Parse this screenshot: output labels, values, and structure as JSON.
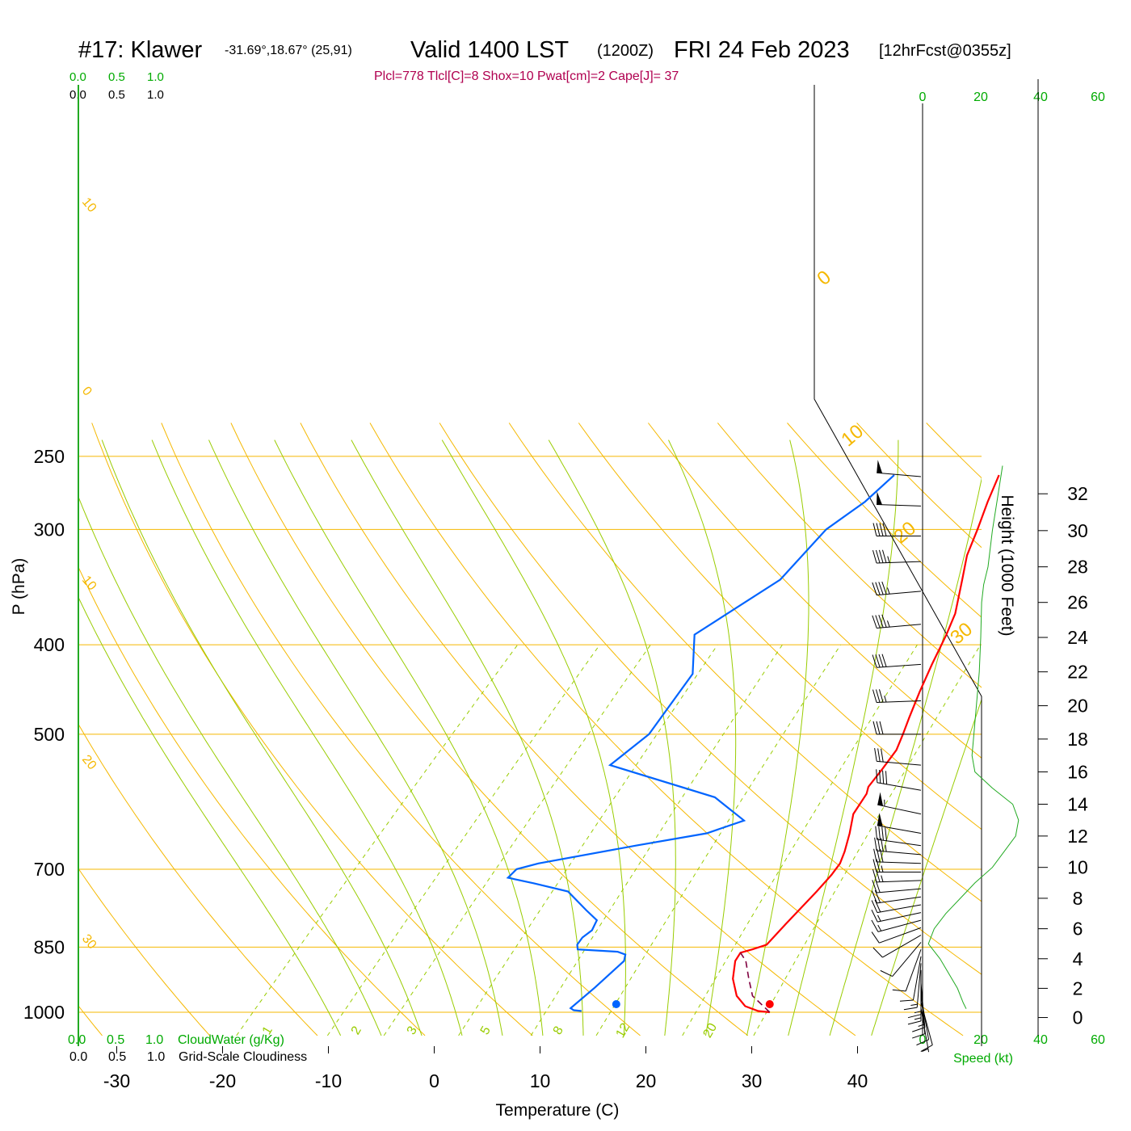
{
  "header": {
    "station": "#17: Klawer",
    "coords": "-31.69°,18.67° (25,91)",
    "valid": "Valid 1400 LST",
    "zulu": "(1200Z)",
    "date": "FRI 24 Feb 2023",
    "forecast": "[12hrFcst@0355z]",
    "indices": "Plcl=778 Tlcl[C]=8 Shox=10 Pwat[cm]=2 Cape[J]= 37"
  },
  "colors": {
    "temperature": "#ff0000",
    "dewpoint": "#0064ff",
    "parcel": "#800040",
    "isobar": "#f5b800",
    "dry_adiabat": "#f5b800",
    "moist_adiabat": "#99cc00",
    "mixing_ratio": "#99cc00",
    "green_text": "#00aa00",
    "indices_text": "#b00050"
  },
  "labels": {
    "cloud_scale_values": [
      "0.0",
      "0.5",
      "1.0"
    ],
    "cloud_water": "CloudWater (g/Kg)",
    "cloudiness": "Grid-Scale Cloudiness",
    "speed_ticks": [
      "0",
      "20",
      "40",
      "60"
    ],
    "speed_label": "Speed (kt)",
    "height_label": "Height (1000 Feet)",
    "height_ticks": [
      "0",
      "2",
      "4",
      "6",
      "8",
      "10",
      "12",
      "14",
      "16",
      "18",
      "20",
      "22",
      "24",
      "26",
      "28",
      "30",
      "32"
    ]
  },
  "chart_data": {
    "type": "line",
    "subtype": "skew-T log-P sounding",
    "xlabel": "Temperature (C)",
    "ylabel": "P (hPa)",
    "x_ticks": [
      -30,
      -20,
      -10,
      0,
      10,
      20,
      30,
      40
    ],
    "pressure_ticks": [
      250,
      300,
      400,
      500,
      700,
      850,
      1000
    ],
    "y_scale": "log (inverted)",
    "dry_adiabat_labels": [
      "30",
      "20",
      "10",
      "0",
      "-10",
      "-20",
      "-30"
    ],
    "right_dry_adiabat_labels": [
      "0",
      "10",
      "20",
      "30"
    ],
    "mixing_ratio_labels": [
      "1",
      "2",
      "3",
      "5",
      "8",
      "12",
      "20"
    ],
    "series": [
      {
        "name": "Temperature",
        "points": [
          [
            1000,
            31.7
          ],
          [
            997,
            30.5
          ],
          [
            985,
            28.8
          ],
          [
            960,
            27.0
          ],
          [
            920,
            25.0
          ],
          [
            880,
            23.5
          ],
          [
            862,
            23.2
          ],
          [
            855,
            24.0
          ],
          [
            845,
            24.9
          ],
          [
            800,
            24.7
          ],
          [
            740,
            24.5
          ],
          [
            710,
            24.3
          ],
          [
            690,
            24.0
          ],
          [
            670,
            23.3
          ],
          [
            640,
            22.0
          ],
          [
            610,
            20.5
          ],
          [
            580,
            19.8
          ],
          [
            570,
            19.3
          ],
          [
            545,
            18.9
          ],
          [
            520,
            18.4
          ],
          [
            500,
            17.5
          ],
          [
            480,
            16.5
          ],
          [
            450,
            15.0
          ],
          [
            420,
            13.5
          ],
          [
            390,
            12.0
          ],
          [
            370,
            10.8
          ],
          [
            340,
            8.2
          ],
          [
            320,
            6.3
          ],
          [
            300,
            4.8
          ],
          [
            280,
            3.1
          ],
          [
            262,
            1.6
          ]
        ]
      },
      {
        "name": "Dewpoint",
        "points": [
          [
            997,
            13.8
          ],
          [
            995,
            13.0
          ],
          [
            990,
            12.5
          ],
          [
            940,
            12.8
          ],
          [
            880,
            13.0
          ],
          [
            866,
            12.5
          ],
          [
            860,
            11.5
          ],
          [
            855,
            7.5
          ],
          [
            845,
            7.0
          ],
          [
            830,
            6.8
          ],
          [
            815,
            7.0
          ],
          [
            795,
            6.5
          ],
          [
            775,
            4.5
          ],
          [
            740,
            1.0
          ],
          [
            725,
            -3.0
          ],
          [
            715,
            -6.0
          ],
          [
            700,
            -6.0
          ],
          [
            690,
            -4.5
          ],
          [
            660,
            3.0
          ],
          [
            640,
            8.5
          ],
          [
            620,
            10.8
          ],
          [
            585,
            5.8
          ],
          [
            540,
            -7.2
          ],
          [
            500,
            -6.5
          ],
          [
            430,
            -8.2
          ],
          [
            390,
            -11.8
          ],
          [
            340,
            -9.0
          ],
          [
            300,
            -9.5
          ],
          [
            280,
            -8.5
          ],
          [
            262,
            -8.3
          ]
        ]
      },
      {
        "name": "Parcel",
        "points": [
          [
            1000,
            31.7
          ],
          [
            960,
            28.5
          ],
          [
            920,
            26.5
          ],
          [
            880,
            24.5
          ],
          [
            862,
            23.2
          ]
        ]
      }
    ],
    "markers": [
      {
        "name": "surface dewpoint",
        "t": 17.2,
        "p": 1000
      },
      {
        "name": "surface temperature",
        "t": 31.7,
        "p": 1000
      }
    ],
    "wind_barbs_kt": [
      {
        "p": 990,
        "speed": 6,
        "dir": 170
      },
      {
        "p": 975,
        "speed": 10,
        "dir": 165
      },
      {
        "p": 960,
        "speed": 12,
        "dir": 170
      },
      {
        "p": 945,
        "speed": 12,
        "dir": 175
      },
      {
        "p": 930,
        "speed": 14,
        "dir": 175
      },
      {
        "p": 915,
        "speed": 14,
        "dir": 180
      },
      {
        "p": 900,
        "speed": 15,
        "dir": 180
      },
      {
        "p": 885,
        "speed": 14,
        "dir": 185
      },
      {
        "p": 870,
        "speed": 12,
        "dir": 190
      },
      {
        "p": 855,
        "speed": 10,
        "dir": 200
      },
      {
        "p": 840,
        "speed": 8,
        "dir": 220
      },
      {
        "p": 825,
        "speed": 10,
        "dir": 240
      },
      {
        "p": 810,
        "speed": 12,
        "dir": 250
      },
      {
        "p": 795,
        "speed": 14,
        "dir": 255
      },
      {
        "p": 780,
        "speed": 16,
        "dir": 258
      },
      {
        "p": 765,
        "speed": 18,
        "dir": 260
      },
      {
        "p": 750,
        "speed": 20,
        "dir": 262
      },
      {
        "p": 735,
        "speed": 22,
        "dir": 265
      },
      {
        "p": 720,
        "speed": 24,
        "dir": 268
      },
      {
        "p": 705,
        "speed": 25,
        "dir": 270
      },
      {
        "p": 690,
        "speed": 30,
        "dir": 272
      },
      {
        "p": 675,
        "speed": 35,
        "dir": 275
      },
      {
        "p": 660,
        "speed": 40,
        "dir": 278
      },
      {
        "p": 640,
        "speed": 50,
        "dir": 280
      },
      {
        "p": 610,
        "speed": 55,
        "dir": 282
      },
      {
        "p": 575,
        "speed": 40,
        "dir": 280
      },
      {
        "p": 540,
        "speed": 30,
        "dir": 275
      },
      {
        "p": 500,
        "speed": 30,
        "dir": 270
      },
      {
        "p": 460,
        "speed": 35,
        "dir": 268
      },
      {
        "p": 420,
        "speed": 40,
        "dir": 266
      },
      {
        "p": 380,
        "speed": 45,
        "dir": 265
      },
      {
        "p": 350,
        "speed": 45,
        "dir": 265
      },
      {
        "p": 325,
        "speed": 45,
        "dir": 268
      },
      {
        "p": 305,
        "speed": 40,
        "dir": 270
      },
      {
        "p": 283,
        "speed": 50,
        "dir": 272
      },
      {
        "p": 263,
        "speed": 50,
        "dir": 275
      }
    ],
    "wind_speed_profile": [
      [
        0.6,
        15
      ],
      [
        1,
        14
      ],
      [
        2,
        12
      ],
      [
        4,
        6
      ],
      [
        5,
        2
      ],
      [
        6,
        4
      ],
      [
        7,
        8
      ],
      [
        8,
        13
      ],
      [
        9,
        18
      ],
      [
        10,
        24
      ],
      [
        11,
        28
      ],
      [
        12,
        32
      ],
      [
        13,
        33
      ],
      [
        14,
        31
      ],
      [
        15,
        24
      ],
      [
        16,
        18
      ],
      [
        17,
        17
      ],
      [
        18,
        17.5
      ],
      [
        20,
        18.5
      ],
      [
        22,
        19.5
      ],
      [
        24,
        20
      ],
      [
        26,
        20.3
      ],
      [
        27,
        21
      ],
      [
        28,
        22.5
      ],
      [
        30,
        24
      ],
      [
        32,
        26
      ],
      [
        33.5,
        27.5
      ]
    ]
  }
}
